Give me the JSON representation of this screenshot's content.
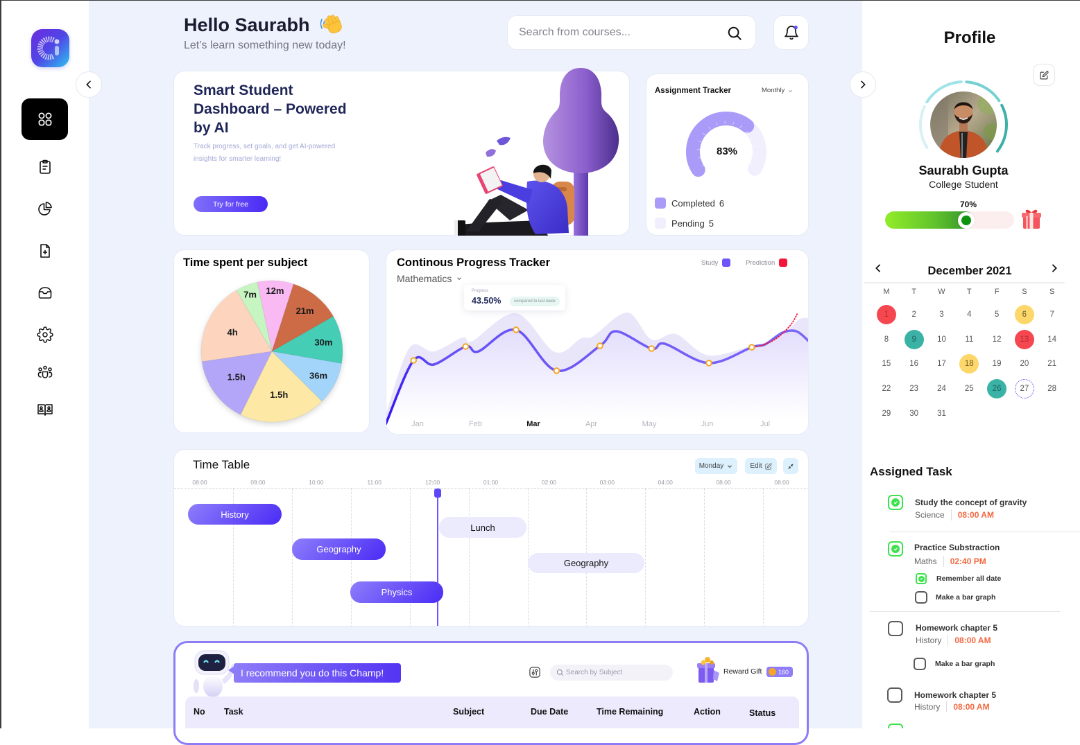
{
  "sidebar": {
    "items": [
      {
        "key": "dashboard",
        "icon": "grid-icon",
        "active": true
      },
      {
        "key": "assignments",
        "icon": "clipboard-icon",
        "active": false
      },
      {
        "key": "analytics",
        "icon": "pie-chart-icon",
        "active": false
      },
      {
        "key": "add-document",
        "icon": "file-plus-icon",
        "active": false
      },
      {
        "key": "inbox",
        "icon": "inbox-icon",
        "active": false
      },
      {
        "key": "settings",
        "icon": "gear-icon",
        "active": false
      },
      {
        "key": "community",
        "icon": "users-icon",
        "active": false
      },
      {
        "key": "library",
        "icon": "book-users-icon",
        "active": false
      }
    ],
    "collapse_icon": "chevron-left-icon"
  },
  "header": {
    "greeting": "Hello Saurabh",
    "greeting_icon": "waving-hand-icon",
    "subtitle": "Let’s learn something new today!",
    "search": {
      "placeholder": "Search from courses...",
      "value": ""
    },
    "notifications": {
      "icon": "bell-icon",
      "has_unread": true,
      "dot_color": "#5B4CF5"
    }
  },
  "hero": {
    "title_lines": [
      "Smart Student",
      "Dashboard – Powered",
      "by AI"
    ],
    "description_lines": [
      "Track progress, set goals, and get AI-powered",
      "insights for smarter learning!"
    ],
    "cta_label": "Try for free"
  },
  "assignment_tracker": {
    "title": "Assignment Tracker",
    "period": "Monthly",
    "percent_label": "83%",
    "legend": [
      {
        "label": "Completed",
        "count": "6",
        "color": "#A99BF7"
      },
      {
        "label": "Pending",
        "count": "5",
        "color": "#F1EFFD"
      }
    ]
  },
  "chart_data": [
    {
      "id": "time-spent-per-subject",
      "type": "pie",
      "title": "Time spent per subject",
      "start_deg": 348,
      "slices": [
        {
          "label": "12m",
          "minutes": 12,
          "color": "#F9B9F2",
          "sweep_deg": 29.8
        },
        {
          "label": "21m",
          "minutes": 21,
          "color": "#CC6B45",
          "sweep_deg": 42.5
        },
        {
          "label": "30m",
          "minutes": 30,
          "color": "#45CDB6",
          "sweep_deg": 39.6
        },
        {
          "label": "36m",
          "minutes": 36,
          "color": "#A3D5FB",
          "sweep_deg": 35.1
        },
        {
          "label": "1.5h",
          "minutes": 90,
          "color": "#FDE8A6",
          "sweep_deg": 71.3
        },
        {
          "label": "1.5h",
          "minutes": 90,
          "color": "#B3A6F8",
          "sweep_deg": 55.4
        },
        {
          "label": "4h",
          "minutes": 240,
          "color": "#FDD5BF",
          "sweep_deg": 68.2
        },
        {
          "label": "7m",
          "minutes": 7,
          "color": "#C6F5C2",
          "sweep_deg": 18.1
        }
      ]
    },
    {
      "id": "continuous-progress",
      "type": "line",
      "title": "Continous Progress Tracker",
      "subtitle": "Mathematics",
      "categories": [
        "Jan",
        "Feb",
        "Mar",
        "Apr",
        "May",
        "Jun",
        "Jul"
      ],
      "active_category": "Mar",
      "xlabel": "",
      "ylabel": "",
      "ylim": [
        0,
        100
      ],
      "grid": false,
      "legend": [
        {
          "label": "Study",
          "color": "#6C55F9"
        },
        {
          "label": "Prediction",
          "color": "#F2163A"
        }
      ],
      "tooltip": {
        "label": "Progress",
        "value": "43.50%",
        "note": "compared to last week"
      },
      "series": [
        {
          "name": "Study",
          "color": "#6C55F9",
          "points": [
            [
              -0.55,
              0
            ],
            [
              -0.07,
              53.5
            ],
            [
              0.28,
              50
            ],
            [
              0.83,
              65.1
            ],
            [
              1.05,
              61
            ],
            [
              1.7,
              79.1
            ],
            [
              2.4,
              44.8
            ],
            [
              3.15,
              65.7
            ],
            [
              3.43,
              77.9
            ],
            [
              4.04,
              63.4
            ],
            [
              4.27,
              67.4
            ],
            [
              5.03,
              51.2
            ],
            [
              5.77,
              64.5
            ],
            [
              6.0,
              66.9
            ],
            [
              6.3,
              76.7
            ],
            [
              6.54,
              77.9
            ],
            [
              6.75,
              69.8
            ]
          ],
          "markers": [
            [
              -0.07,
              53.5
            ],
            [
              0.83,
              65.1
            ],
            [
              1.7,
              79.1
            ],
            [
              2.4,
              44.8
            ],
            [
              3.15,
              65.7
            ],
            [
              4.04,
              63.4
            ],
            [
              5.03,
              51.2
            ],
            [
              5.77,
              64.5
            ]
          ]
        },
        {
          "name": "Range",
          "color": "#E8E5FA",
          "points": [
            [
              -0.55,
              8
            ],
            [
              -0.14,
              64
            ],
            [
              0.28,
              61
            ],
            [
              0.78,
              72.7
            ],
            [
              0.95,
              69.8
            ],
            [
              1.7,
              93
            ],
            [
              2.37,
              60.5
            ],
            [
              2.82,
              72
            ],
            [
              3.03,
              73.8
            ],
            [
              3.62,
              93.6
            ],
            [
              4.04,
              71
            ],
            [
              4.46,
              75.6
            ],
            [
              5.03,
              57.6
            ],
            [
              5.85,
              66.9
            ],
            [
              6.21,
              69.8
            ],
            [
              6.57,
              87.2
            ],
            [
              6.75,
              89
            ]
          ]
        },
        {
          "name": "Prediction",
          "color": "#F2163A",
          "points": [
            [
              5.77,
              64.5
            ],
            [
              5.96,
              66.3
            ],
            [
              6.2,
              72.1
            ],
            [
              6.44,
              83.1
            ],
            [
              6.56,
              93
            ]
          ]
        }
      ]
    }
  ],
  "timetable": {
    "title": "Time Table",
    "day": "Monday",
    "edit_label": "Edit",
    "times": [
      "08:00",
      "09:00",
      "10:00",
      "11:00",
      "12:00",
      "01:00",
      "02:00",
      "03:00",
      "04:00",
      "08:00",
      "08:00"
    ],
    "events": [
      {
        "label": "History",
        "style": "primary"
      },
      {
        "label": "Lunch",
        "style": "light"
      },
      {
        "label": "Geography",
        "style": "primary"
      },
      {
        "label": "Geography",
        "style": "light"
      },
      {
        "label": "Physics",
        "style": "primary"
      }
    ]
  },
  "recommendation": {
    "message": "I recommend you do this Champ!",
    "search_placeholder": "Search by Subject",
    "reward_label": "Reward Gift",
    "reward_points": "160",
    "table_headers": [
      "No",
      "Task",
      "Subject",
      "Due Date",
      "Time Remaining",
      "Action",
      "Status"
    ]
  },
  "profile": {
    "title": "Profile",
    "name": "Saurabh Gupta",
    "role": "College Student",
    "progress_label": "70%",
    "progress_value": 70
  },
  "calendar": {
    "month_label": "December 2021",
    "weekdays": [
      "M",
      "T",
      "W",
      "T",
      "F",
      "S",
      "S"
    ],
    "days": [
      {
        "day": "1",
        "mark": "red"
      },
      {
        "day": "2"
      },
      {
        "day": "3"
      },
      {
        "day": "4"
      },
      {
        "day": "5"
      },
      {
        "day": "6",
        "mark": "yellow"
      },
      {
        "day": "7"
      },
      {
        "day": "8"
      },
      {
        "day": "9",
        "mark": "teal"
      },
      {
        "day": "10"
      },
      {
        "day": "11"
      },
      {
        "day": "12"
      },
      {
        "day": "13",
        "mark": "red"
      },
      {
        "day": "14"
      },
      {
        "day": "15"
      },
      {
        "day": "16"
      },
      {
        "day": "17"
      },
      {
        "day": "18",
        "mark": "yellow"
      },
      {
        "day": "19"
      },
      {
        "day": "20"
      },
      {
        "day": "21"
      },
      {
        "day": "22"
      },
      {
        "day": "23"
      },
      {
        "day": "24"
      },
      {
        "day": "25"
      },
      {
        "day": "26",
        "mark": "teal"
      },
      {
        "day": "27",
        "mark": "today"
      },
      {
        "day": "28"
      },
      {
        "day": "29"
      },
      {
        "day": "30"
      },
      {
        "day": "31"
      }
    ],
    "mark_colors": {
      "red": "#F5474F",
      "yellow": "#FDD76A",
      "teal": "#3AB2A6",
      "today": "#4B3CF5"
    }
  },
  "assigned_tasks": {
    "title": "Assigned Task",
    "items": [
      {
        "title": "Study the concept of gravity",
        "subject": "Science",
        "time": "08:00 AM",
        "done": true,
        "subtasks": []
      },
      {
        "title": "Practice Substraction",
        "subject": "Maths",
        "time": "02:40 PM",
        "done": true,
        "subtasks": [
          {
            "label": "Remember all date",
            "done": true
          },
          {
            "label": "Make a bar graph",
            "done": false
          }
        ]
      },
      {
        "title": "Homework chapter 5",
        "subject": "History",
        "time": "08:00 AM",
        "done": false,
        "subtasks": [
          {
            "label": "Make a bar graph",
            "done": false
          }
        ]
      },
      {
        "title": "Homework chapter 5",
        "subject": "History",
        "time": "08:00 AM",
        "done": false,
        "subtasks": []
      },
      {
        "done": true
      }
    ]
  },
  "colors": {
    "accent": "#5B47F5",
    "accent_light": "#ECEAFD",
    "time_orange": "#F4683F",
    "check_green": "#3EE24E",
    "page_bg": "#EEF2FD"
  }
}
